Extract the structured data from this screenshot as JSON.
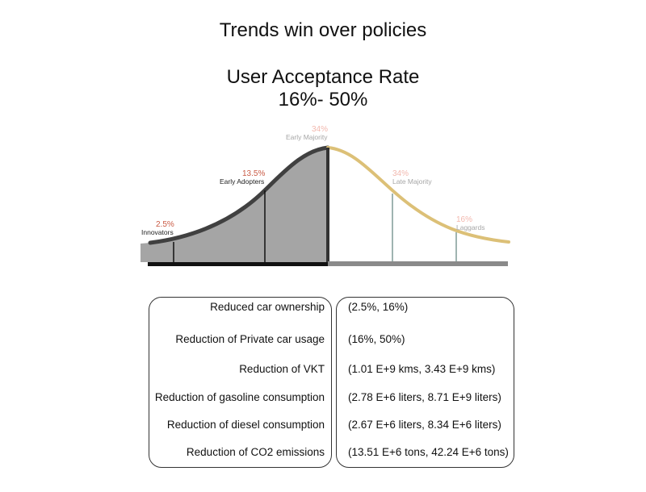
{
  "title": "Trends win over policies",
  "subtitle": "User Acceptance Rate",
  "range": "16%- 50%",
  "colors": {
    "left_curve": "#404040",
    "right_curve": "#dcc077",
    "left_fill": "#a5a5a5",
    "left_base": "#111111",
    "right_base": "#8a8a8a",
    "pct_highlight": "#c95a44",
    "pct_faded": "#f2b8ae",
    "name_dark": "#222222",
    "name_faded": "#a6a6a6",
    "divider_right": "#9fb4b1"
  },
  "segments": [
    {
      "percent": "2.5%",
      "name": "Innovators"
    },
    {
      "percent": "13.5%",
      "name": "Early Adopters"
    },
    {
      "percent": "34%",
      "name": "Early Majority"
    },
    {
      "percent": "34%",
      "name": "Late Majority"
    },
    {
      "percent": "16%",
      "name": "Laggards"
    }
  ],
  "rows": [
    {
      "label": "Reduced car ownership",
      "value": "(2.5%, 16%)"
    },
    {
      "label": "Reduction of Private car usage",
      "value": "(16%, 50%)"
    },
    {
      "label": "Reduction of VKT",
      "value": "(1.01 E+9 kms, 3.43 E+9 kms)"
    },
    {
      "label": "Reduction of gasoline consumption",
      "value": "(2.78 E+6 liters, 8.71 E+9 liters)"
    },
    {
      "label": "Reduction of diesel consumption",
      "value": "(2.67 E+6 liters, 8.34 E+6 liters)"
    },
    {
      "label": "Reduction of CO2 emissions",
      "value": "(13.51 E+6 tons, 42.24 E+6 tons)"
    }
  ]
}
